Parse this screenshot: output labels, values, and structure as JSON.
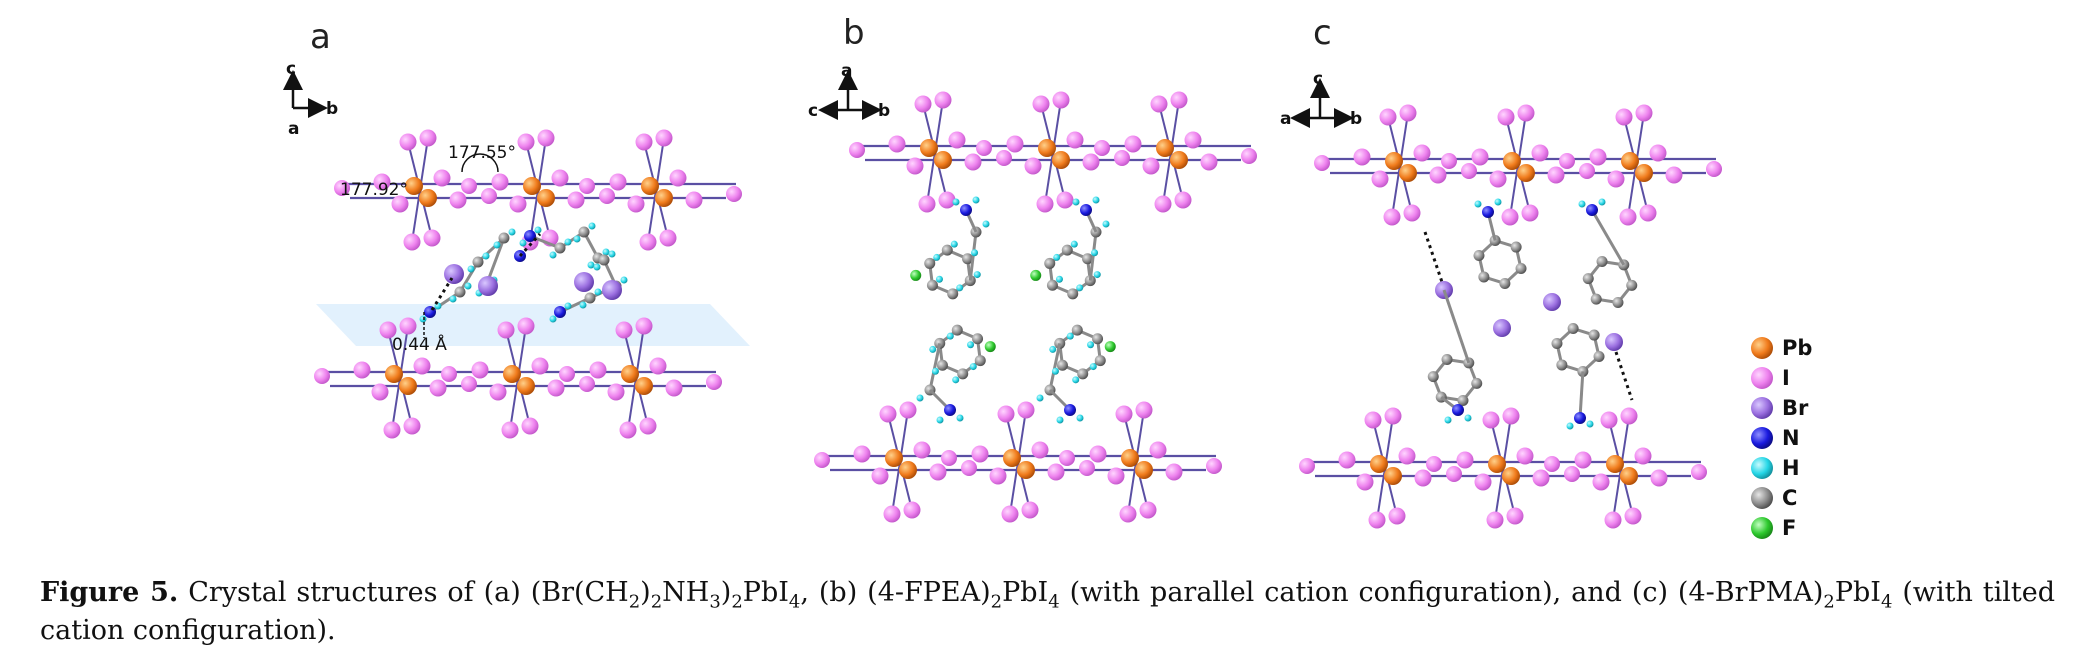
{
  "panels": [
    {
      "label": "a",
      "axes": {
        "up": "c",
        "right": "b",
        "out": "a"
      },
      "annotations": {
        "angle1": "177.55°",
        "angle2": "177.92°",
        "distance": "0.44 Å"
      }
    },
    {
      "label": "b",
      "axes": {
        "up": "a",
        "right": "b",
        "left": "c"
      }
    },
    {
      "label": "c",
      "axes": {
        "up": "c",
        "right": "b",
        "left": "a"
      }
    }
  ],
  "legend": [
    {
      "symbol": "Pb",
      "color": "#f07b1c"
    },
    {
      "symbol": "I",
      "color": "#ee82ee"
    },
    {
      "symbol": "Br",
      "color": "#9b6fe0"
    },
    {
      "symbol": "N",
      "color": "#1a1adf"
    },
    {
      "symbol": "H",
      "color": "#25d6e6"
    },
    {
      "symbol": "C",
      "color": "#8c8c8c"
    },
    {
      "symbol": "F",
      "color": "#2ec92e"
    }
  ],
  "caption": {
    "label": "Figure 5.",
    "parts": [
      "Crystal structures of (a) (Br(CH",
      "2",
      ")",
      "2",
      "NH",
      "3",
      ")",
      "2",
      "PbI",
      "4",
      ", (b) (4-FPEA)",
      "2",
      "PbI",
      "4",
      " (with parallel cation configuration), and (c) (4-BrPMA)",
      "2",
      "PbI",
      "4",
      " (with tilted cation configuration)."
    ]
  }
}
